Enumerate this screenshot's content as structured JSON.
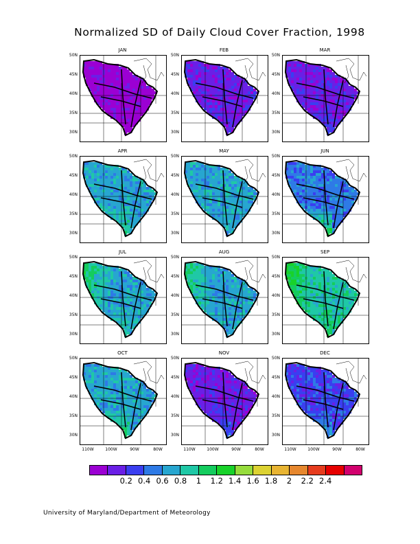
{
  "title": "Normalized SD of Daily Cloud Cover Fraction, 1998",
  "footer": "University of Maryland/Department of Meteorology",
  "months": [
    {
      "name": "JAN",
      "lat_labels": [
        "50N",
        "45N",
        "40N",
        "35N",
        "30N"
      ],
      "base_level": 0,
      "west_boost": 0,
      "south_boost": 0
    },
    {
      "name": "FEB",
      "lat_labels": [
        "50N",
        "45N",
        "40N",
        "35N",
        "30N"
      ],
      "base_level": 1,
      "west_boost": 0,
      "south_boost": 0
    },
    {
      "name": "MAR",
      "lat_labels": [
        "50N",
        "45N",
        "40N",
        "35N",
        "30N"
      ],
      "base_level": 1,
      "west_boost": 0,
      "south_boost": 1
    },
    {
      "name": "APR",
      "lat_labels": [
        "50N",
        "45N",
        "40N",
        "35N",
        "30N"
      ],
      "base_level": 4,
      "west_boost": 0,
      "south_boost": 2
    },
    {
      "name": "MAY",
      "lat_labels": [
        "50N",
        "45N",
        "40N",
        "35N",
        "30N"
      ],
      "base_level": 4,
      "west_boost": 0,
      "south_boost": 0
    },
    {
      "name": "JUN",
      "lat_labels": [
        "50N",
        "45N",
        "40N",
        "35N",
        "30N"
      ],
      "base_level": 3,
      "west_boost": 0,
      "south_boost": 4
    },
    {
      "name": "JUL",
      "lat_labels": [
        "50N",
        "45N",
        "40N",
        "35N",
        "30N"
      ],
      "base_level": 4,
      "west_boost": 2,
      "south_boost": 1
    },
    {
      "name": "AUG",
      "lat_labels": [
        "50N",
        "45N",
        "40N",
        "35N",
        "30N"
      ],
      "base_level": 4,
      "west_boost": 2,
      "south_boost": 0
    },
    {
      "name": "SEP",
      "lat_labels": [
        "50N",
        "45N",
        "40N",
        "35N",
        "30N"
      ],
      "base_level": 5,
      "west_boost": 2,
      "south_boost": 1
    },
    {
      "name": "OCT",
      "lat_labels": [
        "50N",
        "45N",
        "40N",
        "35N",
        "30N"
      ],
      "base_level": 4,
      "west_boost": 0,
      "south_boost": 2
    },
    {
      "name": "NOV",
      "lat_labels": [
        "50N",
        "45N",
        "40N",
        "35N",
        "30N"
      ],
      "base_level": 1,
      "west_boost": 0,
      "south_boost": 2
    },
    {
      "name": "DEC",
      "lat_labels": [
        "50N",
        "45N",
        "40N",
        "35N",
        "30N"
      ],
      "base_level": 2,
      "west_boost": 0,
      "south_boost": 2
    }
  ],
  "lon_labels": [
    [
      "110W",
      "100W",
      "90W",
      "80W"
    ],
    [
      "110W",
      "100W",
      "90W",
      "80W"
    ],
    [
      "110W",
      "100W",
      "90W",
      "80W"
    ]
  ],
  "colorbar": {
    "colors": [
      "#9b00d3",
      "#6a1fe6",
      "#3a3ef0",
      "#2e7ae6",
      "#27a6d0",
      "#1fc8a6",
      "#14cc5e",
      "#18d22a",
      "#96dc3c",
      "#dcd232",
      "#e8b432",
      "#e6872e",
      "#e63c1e",
      "#e60000",
      "#d2006e"
    ],
    "labels": [
      "0.2",
      "0.4",
      "0.6",
      "0.8",
      "1",
      "1.2",
      "1.4",
      "1.6",
      "1.8",
      "2",
      "2.2",
      "2.4"
    ]
  }
}
